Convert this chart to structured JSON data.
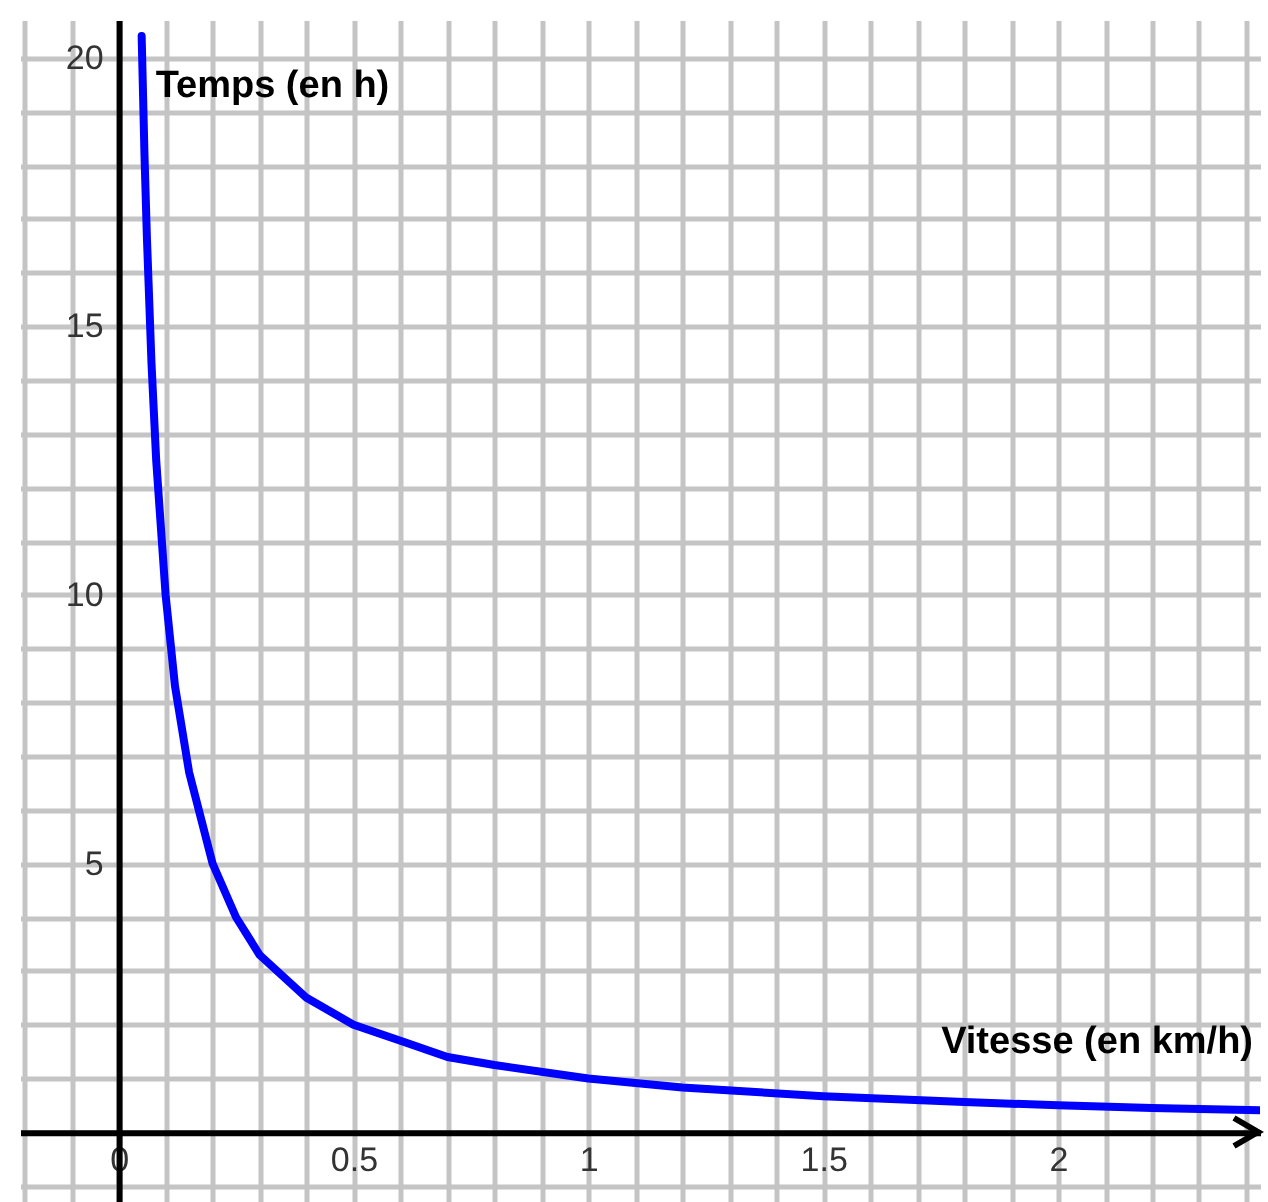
{
  "chart_data": {
    "type": "line",
    "xlabel": "Vitesse (en km/h)",
    "ylabel": "Temps (en h)",
    "x": [
      0.049,
      0.055,
      0.06,
      0.07,
      0.08,
      0.1,
      0.12,
      0.15,
      0.2,
      0.25,
      0.3,
      0.4,
      0.5,
      0.6,
      0.7,
      0.8,
      1,
      1.2,
      1.5,
      1.8,
      2,
      2.2,
      2.43
    ],
    "series": [
      {
        "color": "#0000ff",
        "values": [
          20.4,
          18.2,
          16.7,
          14.3,
          12.5,
          10,
          8.3,
          6.7,
          5,
          4,
          3.3,
          2.5,
          2,
          1.7,
          1.4,
          1.25,
          1,
          0.83,
          0.67,
          0.56,
          0.5,
          0.45,
          0.41
        ]
      }
    ],
    "xlim": [
      -0.21,
      2.43
    ],
    "ylim": [
      -1.3,
      20.7
    ],
    "xticks": [
      {
        "value": -0.2,
        "label": null
      },
      {
        "value": -0.1,
        "label": null
      },
      0,
      {
        "value": 0.1,
        "label": null
      },
      {
        "value": 0.2,
        "label": null
      },
      {
        "value": 0.3,
        "label": null
      },
      {
        "value": 0.4,
        "label": null
      },
      0.5,
      {
        "value": 0.6,
        "label": null
      },
      {
        "value": 0.7,
        "label": null
      },
      {
        "value": 0.8,
        "label": null
      },
      {
        "value": 0.9,
        "label": null
      },
      1,
      {
        "value": 1.1,
        "label": null
      },
      {
        "value": 1.2,
        "label": null
      },
      {
        "value": 1.3,
        "label": null
      },
      {
        "value": 1.4,
        "label": null
      },
      1.5,
      {
        "value": 1.6,
        "label": null
      },
      {
        "value": 1.7,
        "label": null
      },
      {
        "value": 1.8,
        "label": null
      },
      {
        "value": 1.9,
        "label": null
      },
      2,
      {
        "value": 2.1,
        "label": null
      },
      {
        "value": 2.2,
        "label": null
      },
      {
        "value": 2.3,
        "label": null
      },
      {
        "value": 2.4,
        "label": null
      }
    ],
    "yticks": [
      {
        "value": -1,
        "label": null
      },
      {
        "value": 0,
        "label": null
      },
      {
        "value": 1,
        "label": null
      },
      {
        "value": 2,
        "label": null
      },
      {
        "value": 3,
        "label": null
      },
      {
        "value": 4,
        "label": null
      },
      5,
      {
        "value": 6,
        "label": null
      },
      {
        "value": 7,
        "label": null
      },
      {
        "value": 8,
        "label": null
      },
      {
        "value": 9,
        "label": null
      },
      10,
      {
        "value": 11,
        "label": null
      },
      {
        "value": 12,
        "label": null
      },
      {
        "value": 13,
        "label": null
      },
      {
        "value": 14,
        "label": null
      },
      15,
      {
        "value": 16,
        "label": null
      },
      {
        "value": 17,
        "label": null
      },
      {
        "value": 18,
        "label": null
      },
      {
        "value": 19,
        "label": null
      },
      20
    ],
    "grid": true,
    "marker": "none",
    "line_style": "solid"
  }
}
